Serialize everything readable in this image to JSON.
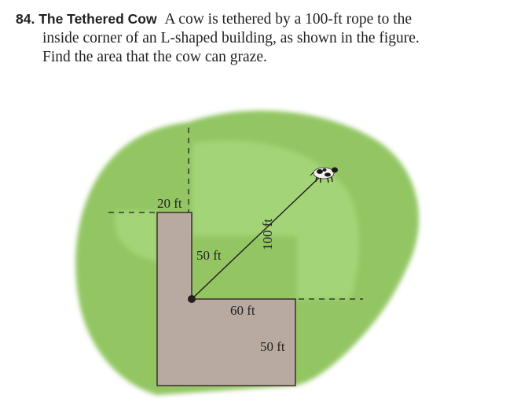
{
  "problem": {
    "number": "84.",
    "title": "The Tethered Cow",
    "line1": "A cow is tethered by a 100-ft rope to the",
    "line2": "inside corner of an L-shaped building, as shown in the figure.",
    "line3": "Find the area that the cow can graze."
  },
  "figure": {
    "labels": {
      "top_width": "20 ft",
      "inner_vertical": "50 ft",
      "rope": "100 ft",
      "inner_horizontal": "60 ft",
      "right_height": "50 ft"
    },
    "colors": {
      "grass_outer": "#93c664",
      "grass_inner": "#a3d477",
      "building": "#b8aaa0",
      "outline": "#3a2e2a"
    },
    "icons": [
      "cow-icon",
      "tether-point-icon"
    ]
  }
}
